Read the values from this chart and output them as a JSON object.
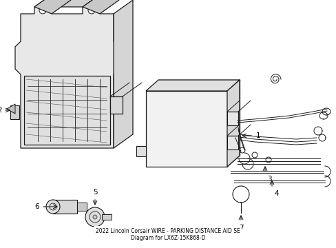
{
  "bg_color": "#ffffff",
  "line_color": "#1a1a1a",
  "label_color": "#000000",
  "figsize": [
    4.89,
    3.6
  ],
  "dpi": 100,
  "title": "2022 Lincoln Corsair WIRE - PARKING DISTANCE AID SE\nDiagram for LX6Z-15K868-D"
}
